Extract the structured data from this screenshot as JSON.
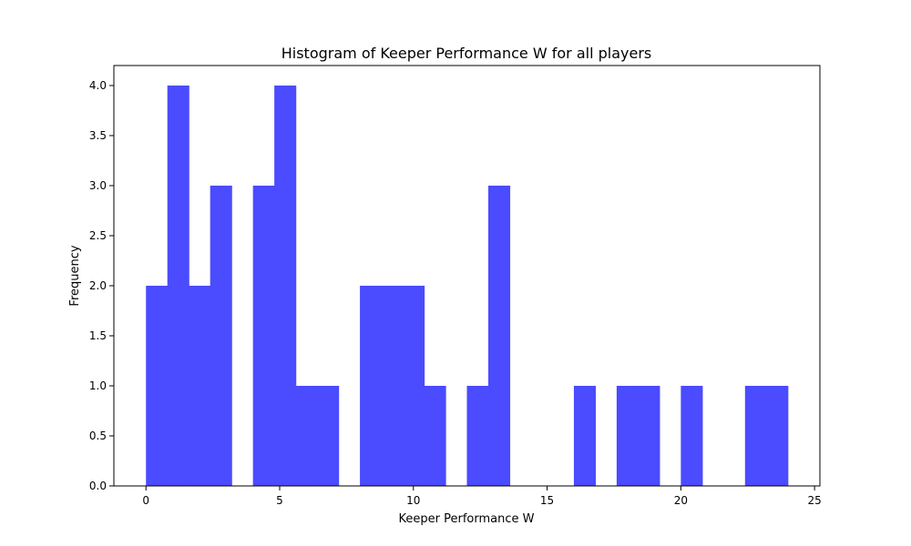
{
  "chart_data": {
    "type": "histogram",
    "title": "Histogram of Keeper Performance W for all players",
    "xlabel": "Keeper Performance W",
    "ylabel": "Frequency",
    "xlim": [
      -1.2,
      25.2
    ],
    "ylim": [
      0,
      4.2
    ],
    "bin_width": 0.8,
    "bin_start": 0,
    "counts": [
      2,
      4,
      2,
      3,
      0,
      3,
      4,
      1,
      1,
      0,
      2,
      2,
      2,
      1,
      0,
      1,
      3,
      0,
      0,
      0,
      1,
      0,
      1,
      1,
      0,
      1,
      0,
      0,
      1,
      1
    ],
    "x_ticks": [
      0,
      5,
      10,
      15,
      20,
      25
    ],
    "y_ticks": [
      0.0,
      0.5,
      1.0,
      1.5,
      2.0,
      2.5,
      3.0,
      3.5,
      4.0
    ],
    "bar_color": "#4b4bff",
    "grid": false,
    "legend": "none"
  }
}
